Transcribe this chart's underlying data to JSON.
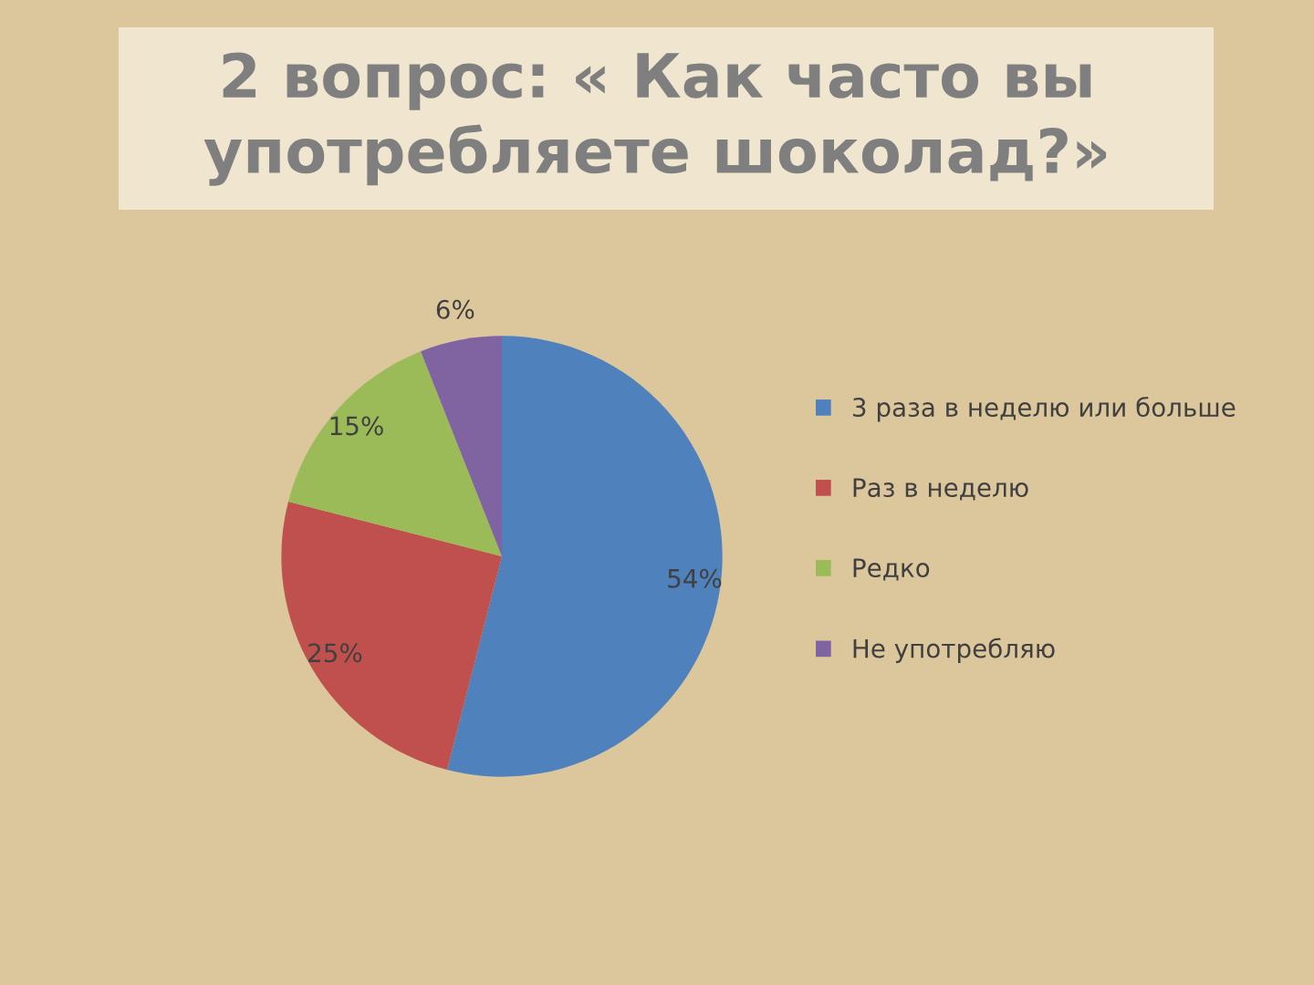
{
  "chart_data": {
    "type": "pie",
    "title": "2 вопрос: « Как часто вы употребляете шоколад?»",
    "categories": [
      "3 раза в неделю или больше",
      "Раз в неделю",
      "Редко",
      "Не употребляю"
    ],
    "values": [
      54,
      25,
      15,
      6
    ],
    "value_labels": [
      "54%",
      "25%",
      "15%",
      "6%"
    ],
    "colors": [
      "#4f81bd",
      "#c0504d",
      "#9bbb59",
      "#8064a2"
    ],
    "legend": "right"
  }
}
